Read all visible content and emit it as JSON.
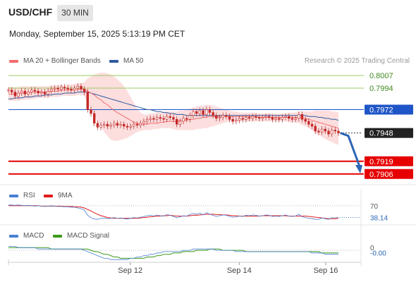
{
  "header": {
    "pair": "USD/CHF",
    "timeframe": "30 MIN",
    "datetime": "Monday, September 15, 2025 5:13:19 PM CET",
    "credit": "Research © 2025 Trading Central"
  },
  "legend_main": [
    {
      "label": "MA 20 + Bollinger Bands",
      "color": "#f26d6d"
    },
    {
      "label": "MA 50",
      "color": "#2c5aa0"
    }
  ],
  "legend_rsi": [
    {
      "label": "RSI",
      "color": "#4a7fd4"
    },
    {
      "label": "9MA",
      "color": "#e01b1b"
    }
  ],
  "legend_macd": [
    {
      "label": "MACD",
      "color": "#4a7fd4"
    },
    {
      "label": "MACD Signal",
      "color": "#3c9a1a"
    }
  ],
  "chart_data": [
    {
      "type": "candlestick",
      "ylim": [
        0.7895,
        0.8015
      ],
      "x_ticks": [
        {
          "label": "Sep 12",
          "t": 38
        },
        {
          "label": "Sep 14",
          "t": 72
        },
        {
          "label": "Sep 16",
          "t": 99
        }
      ],
      "xlim": [
        0,
        110
      ],
      "price_levels": [
        {
          "value": 0.8007,
          "label": "0.8007",
          "kind": "resistance",
          "color": "#9ccc65"
        },
        {
          "value": 0.7994,
          "label": "0.7994",
          "kind": "resistance",
          "color": "#9ccc65"
        },
        {
          "value": 0.7972,
          "label": "0.7972",
          "kind": "pivot",
          "color": "#1f56c7"
        },
        {
          "value": 0.7948,
          "label": "0.7948",
          "kind": "last",
          "color": "#222222"
        },
        {
          "value": 0.7919,
          "label": "0.7919",
          "kind": "support",
          "color": "#e60000"
        },
        {
          "value": 0.7906,
          "label": "0.7906",
          "kind": "support",
          "color": "#e60000"
        }
      ],
      "forecast_arrow": {
        "from": [
          0.7948
        ],
        "to": [
          0.7908
        ]
      },
      "close": [
        0.7992,
        0.799,
        0.7986,
        0.7989,
        0.7991,
        0.7988,
        0.799,
        0.7992,
        0.7991,
        0.7989,
        0.799,
        0.7988,
        0.7991,
        0.7993,
        0.7994,
        0.7993,
        0.7995,
        0.7994,
        0.7993,
        0.7992,
        0.7994,
        0.7996,
        0.7993,
        0.799,
        0.7972,
        0.7968,
        0.7958,
        0.7954,
        0.7956,
        0.7957,
        0.7955,
        0.7956,
        0.7958,
        0.7956,
        0.7957,
        0.7955,
        0.7954,
        0.7955,
        0.7957,
        0.7956,
        0.7958,
        0.796,
        0.7962,
        0.7963,
        0.7962,
        0.7964,
        0.7963,
        0.7962,
        0.7965,
        0.7964,
        0.7962,
        0.7957,
        0.796,
        0.7963,
        0.7962,
        0.7966,
        0.797,
        0.7968,
        0.7971,
        0.7967,
        0.7972,
        0.7969,
        0.7966,
        0.7963,
        0.7964,
        0.7966,
        0.7965,
        0.7962,
        0.796,
        0.7961,
        0.7963,
        0.7962,
        0.7964,
        0.7963,
        0.7965,
        0.7964,
        0.7963,
        0.7964,
        0.7965,
        0.7964,
        0.7962,
        0.7963,
        0.7962,
        0.7964,
        0.7965,
        0.7963,
        0.7962,
        0.7963,
        0.7967,
        0.7962,
        0.796,
        0.7957,
        0.7955,
        0.795,
        0.7949,
        0.7952,
        0.795,
        0.7947,
        0.7951,
        0.795,
        0.7948
      ],
      "ma20": [
        0.7988,
        0.7988,
        0.7988,
        0.7988,
        0.7989,
        0.7989,
        0.7989,
        0.799,
        0.799,
        0.799,
        0.799,
        0.799,
        0.799,
        0.7991,
        0.7991,
        0.7991,
        0.7992,
        0.7992,
        0.7992,
        0.7992,
        0.7992,
        0.7993,
        0.7993,
        0.7993,
        0.7991,
        0.7989,
        0.7987,
        0.7984,
        0.7982,
        0.7979,
        0.7977,
        0.7974,
        0.7971,
        0.7969,
        0.7967,
        0.7965,
        0.7963,
        0.7961,
        0.7959,
        0.7958,
        0.7957,
        0.7957,
        0.7957,
        0.7958,
        0.7958,
        0.7958,
        0.7959,
        0.7959,
        0.796,
        0.796,
        0.796,
        0.796,
        0.7961,
        0.7961,
        0.7961,
        0.7962,
        0.7962,
        0.7963,
        0.7963,
        0.7964,
        0.7964,
        0.7965,
        0.7965,
        0.7965,
        0.7965,
        0.7965,
        0.7965,
        0.7965,
        0.7965,
        0.7965,
        0.7965,
        0.7965,
        0.7965,
        0.7965,
        0.7965,
        0.7965,
        0.7964,
        0.7964,
        0.7964,
        0.7964,
        0.7964,
        0.7964,
        0.7964,
        0.7964,
        0.7964,
        0.7964,
        0.7964,
        0.7964,
        0.7964,
        0.7963,
        0.7963,
        0.7962,
        0.7961,
        0.796,
        0.7959,
        0.7958,
        0.7957,
        0.7956,
        0.7955,
        0.7954,
        0.7953
      ],
      "ma50": [
        0.7983,
        0.7983,
        0.7984,
        0.7984,
        0.7984,
        0.7985,
        0.7985,
        0.7985,
        0.7986,
        0.7986,
        0.7986,
        0.7987,
        0.7987,
        0.7987,
        0.7988,
        0.7988,
        0.7988,
        0.7989,
        0.7989,
        0.7989,
        0.7989,
        0.799,
        0.799,
        0.799,
        0.799,
        0.7989,
        0.7988,
        0.7987,
        0.7986,
        0.7985,
        0.7984,
        0.7983,
        0.7982,
        0.7981,
        0.798,
        0.7979,
        0.7978,
        0.7977,
        0.7976,
        0.7975,
        0.7974,
        0.7973,
        0.7972,
        0.7972,
        0.7971,
        0.797,
        0.797,
        0.7969,
        0.7969,
        0.7968,
        0.7968,
        0.7967,
        0.7967,
        0.7967,
        0.7966,
        0.7966,
        0.7966,
        0.7966,
        0.7966,
        0.7966,
        0.7966,
        0.7966,
        0.7966,
        0.7966,
        0.7966,
        0.7966,
        0.7966,
        0.7966,
        0.7966,
        0.7966,
        0.7966,
        0.7966,
        0.7966,
        0.7966,
        0.7966,
        0.7966,
        0.7966,
        0.7966,
        0.7966,
        0.7966,
        0.7966,
        0.7966,
        0.7966,
        0.7966,
        0.7966,
        0.7966,
        0.7966,
        0.7966,
        0.7966,
        0.7966,
        0.7966,
        0.7965,
        0.7965,
        0.7965,
        0.7964,
        0.7964,
        0.7963,
        0.7963,
        0.7962,
        0.7962,
        0.7961
      ],
      "bb_upper": [
        0.7995,
        0.7995,
        0.7995,
        0.7995,
        0.7996,
        0.7996,
        0.7996,
        0.7996,
        0.7996,
        0.7996,
        0.7996,
        0.7996,
        0.7996,
        0.7997,
        0.7997,
        0.7997,
        0.7997,
        0.7997,
        0.7998,
        0.7998,
        0.7998,
        0.7999,
        0.7999,
        0.8,
        0.8004,
        0.8006,
        0.8008,
        0.8009,
        0.801,
        0.801,
        0.8009,
        0.8008,
        0.8006,
        0.8003,
        0.8,
        0.7996,
        0.7991,
        0.7985,
        0.7979,
        0.7973,
        0.7969,
        0.7967,
        0.7967,
        0.7968,
        0.7968,
        0.7969,
        0.7969,
        0.797,
        0.797,
        0.797,
        0.797,
        0.797,
        0.7971,
        0.7971,
        0.7972,
        0.7973,
        0.7974,
        0.7975,
        0.7976,
        0.7976,
        0.7977,
        0.7977,
        0.7976,
        0.7975,
        0.7974,
        0.7973,
        0.7972,
        0.7971,
        0.797,
        0.797,
        0.7969,
        0.7969,
        0.7969,
        0.7969,
        0.7969,
        0.7969,
        0.7968,
        0.7968,
        0.7968,
        0.7968,
        0.7968,
        0.7968,
        0.7968,
        0.7968,
        0.7968,
        0.7969,
        0.7969,
        0.7969,
        0.797,
        0.797,
        0.797,
        0.797,
        0.797,
        0.7971,
        0.7971,
        0.7971,
        0.7971,
        0.7971,
        0.797,
        0.797,
        0.7969
      ],
      "bb_lower": [
        0.7981,
        0.7981,
        0.7981,
        0.7981,
        0.7982,
        0.7982,
        0.7982,
        0.7983,
        0.7983,
        0.7984,
        0.7984,
        0.7984,
        0.7984,
        0.7985,
        0.7985,
        0.7985,
        0.7986,
        0.7986,
        0.7986,
        0.7986,
        0.7986,
        0.7987,
        0.7987,
        0.7986,
        0.7978,
        0.7972,
        0.7966,
        0.796,
        0.7954,
        0.7949,
        0.7945,
        0.7941,
        0.794,
        0.794,
        0.7941,
        0.7942,
        0.7943,
        0.7945,
        0.7947,
        0.7949,
        0.795,
        0.7951,
        0.7951,
        0.7951,
        0.7952,
        0.7952,
        0.7953,
        0.7953,
        0.7953,
        0.7953,
        0.7952,
        0.7951,
        0.7951,
        0.7951,
        0.7951,
        0.7951,
        0.7951,
        0.7952,
        0.7952,
        0.7953,
        0.7953,
        0.7954,
        0.7955,
        0.7956,
        0.7957,
        0.7958,
        0.7959,
        0.796,
        0.796,
        0.796,
        0.796,
        0.796,
        0.796,
        0.796,
        0.796,
        0.796,
        0.796,
        0.796,
        0.796,
        0.796,
        0.796,
        0.796,
        0.796,
        0.796,
        0.796,
        0.7959,
        0.7959,
        0.7959,
        0.7958,
        0.7956,
        0.7955,
        0.7953,
        0.7951,
        0.7948,
        0.7946,
        0.7944,
        0.7942,
        0.794,
        0.7939,
        0.7937,
        0.7936
      ]
    },
    {
      "type": "line",
      "name": "RSI",
      "ylim": [
        20,
        85
      ],
      "levels": [
        {
          "value": 70,
          "label": "70"
        }
      ],
      "last_label": "38.14",
      "rsi": [
        72,
        72,
        71,
        72,
        71,
        70,
        71,
        70,
        69,
        70,
        69,
        68,
        69,
        70,
        69,
        68,
        68,
        67,
        67,
        66,
        66,
        64,
        62,
        58,
        44,
        38,
        34,
        33,
        36,
        37,
        35,
        36,
        38,
        36,
        37,
        35,
        34,
        36,
        38,
        37,
        39,
        41,
        43,
        44,
        42,
        45,
        43,
        42,
        46,
        44,
        41,
        37,
        40,
        43,
        42,
        46,
        49,
        47,
        50,
        45,
        51,
        47,
        44,
        41,
        43,
        45,
        44,
        41,
        39,
        40,
        42,
        41,
        44,
        43,
        45,
        44,
        42,
        43,
        45,
        44,
        41,
        42,
        41,
        43,
        45,
        42,
        41,
        42,
        47,
        40,
        38,
        36,
        35,
        33,
        33,
        37,
        35,
        33,
        38,
        37,
        38.14
      ],
      "ma9": [
        70,
        70,
        70,
        70,
        70,
        70,
        70,
        70,
        70,
        70,
        69,
        69,
        69,
        69,
        69,
        69,
        69,
        68,
        68,
        68,
        67,
        67,
        66,
        64,
        60,
        56,
        51,
        47,
        43,
        41,
        38,
        37,
        36,
        36,
        36,
        36,
        36,
        36,
        36,
        36,
        37,
        38,
        39,
        40,
        41,
        42,
        42,
        43,
        43,
        44,
        43,
        42,
        42,
        42,
        42,
        43,
        44,
        44,
        45,
        46,
        47,
        47,
        47,
        46,
        46,
        45,
        45,
        44,
        43,
        43,
        42,
        42,
        42,
        42,
        42,
        42,
        42,
        43,
        43,
        43,
        43,
        43,
        43,
        43,
        43,
        42,
        42,
        42,
        42,
        42,
        42,
        41,
        40,
        39,
        38,
        37,
        36,
        35,
        35,
        35,
        36
      ]
    },
    {
      "type": "line",
      "name": "MACD",
      "ylim": [
        -0.0009,
        0.0008
      ],
      "levels": [
        {
          "value": 0,
          "label": "0"
        }
      ],
      "last_label": "-0.00",
      "macd": [
        0.0003,
        0.0003,
        0.0003,
        0.0002,
        0.0002,
        0.0002,
        0.0002,
        0.0002,
        0.0002,
        0.0001,
        0.0001,
        0.0001,
        0.0001,
        0.0001,
        0.0001,
        0.0001,
        0.0001,
        0.0001,
        0.0001,
        0.0001,
        0.0001,
        0.0001,
        0.0001,
        0.0,
        -0.0001,
        -0.0002,
        -0.0003,
        -0.0004,
        -0.0005,
        -0.0006,
        -0.0006,
        -0.0007,
        -0.0007,
        -0.0007,
        -0.0007,
        -0.0007,
        -0.0007,
        -0.0006,
        -0.0006,
        -0.0005,
        -0.0005,
        -0.0004,
        -0.0004,
        -0.0003,
        -0.0003,
        -0.0002,
        -0.0002,
        -0.0001,
        -0.0001,
        -0.0001,
        -0.0001,
        -0.0001,
        -0.0001,
        0.0,
        0.0,
        0.0,
        0.0001,
        0.0001,
        0.0001,
        0.0001,
        0.0001,
        0.0001,
        0.0001,
        0.0,
        0.0,
        0.0,
        0.0,
        0.0,
        0.0,
        -0.0001,
        -0.0001,
        -0.0001,
        -0.0001,
        -0.0001,
        -0.0001,
        -0.0001,
        -0.0001,
        -0.0001,
        -0.0001,
        -0.0001,
        -0.0001,
        -0.0001,
        -0.0001,
        -0.0001,
        -0.0001,
        -0.0001,
        -0.0001,
        -0.0001,
        -0.0001,
        -0.0001,
        -0.0001,
        -0.0001,
        -0.0002,
        -0.0002,
        -0.0002,
        -0.0002,
        -0.0003,
        -0.0003,
        -0.0003,
        -0.0003,
        -0.0003
      ],
      "signal": [
        0.0002,
        0.0002,
        0.0002,
        0.0002,
        0.0002,
        0.0002,
        0.0002,
        0.0002,
        0.0002,
        0.0002,
        0.0002,
        0.0002,
        0.0002,
        0.0001,
        0.0001,
        0.0001,
        0.0001,
        0.0001,
        0.0001,
        0.0001,
        0.0001,
        0.0001,
        0.0001,
        0.0001,
        0.0001,
        0.0,
        -0.0001,
        -0.0001,
        -0.0002,
        -0.0003,
        -0.0003,
        -0.0004,
        -0.0005,
        -0.0005,
        -0.0006,
        -0.0006,
        -0.0006,
        -0.0006,
        -0.0006,
        -0.0006,
        -0.0006,
        -0.0006,
        -0.0005,
        -0.0005,
        -0.0005,
        -0.0004,
        -0.0004,
        -0.0003,
        -0.0003,
        -0.0003,
        -0.0002,
        -0.0002,
        -0.0002,
        -0.0001,
        -0.0001,
        -0.0001,
        -0.0001,
        0.0,
        0.0,
        0.0,
        0.0,
        0.0001,
        0.0001,
        0.0001,
        0.0001,
        0.0,
        0.0,
        0.0,
        0.0,
        0.0,
        0.0,
        0.0,
        -0.0001,
        -0.0001,
        -0.0001,
        -0.0001,
        -0.0001,
        -0.0001,
        -0.0001,
        -0.0001,
        -0.0001,
        -0.0001,
        -0.0001,
        -0.0001,
        -0.0001,
        -0.0001,
        -0.0001,
        -0.0001,
        -0.0001,
        -0.0001,
        -0.0001,
        -0.0001,
        -0.0001,
        -0.0001,
        -0.0001,
        -0.0002,
        -0.0002,
        -0.0002,
        -0.0002,
        -0.0002,
        -0.0002
      ]
    }
  ]
}
